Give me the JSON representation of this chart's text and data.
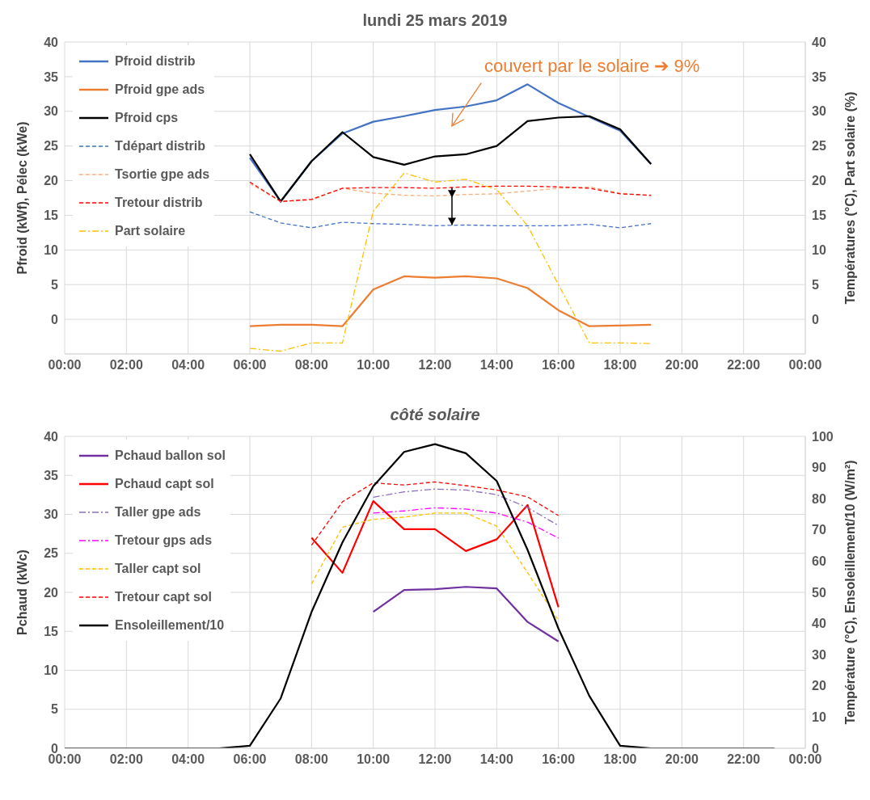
{
  "chart_data": [
    {
      "type": "line",
      "title": "lundi 25 mars 2019",
      "ylabel": "Pfroid (kWf), Pélec (kWe)",
      "y2label": "Températures (°C), Part solaire (%)",
      "annotations": [
        "couvert par le solaire ➔ 9%"
      ],
      "xlim": [
        0,
        24
      ],
      "xticks": [
        {
          "value": 0,
          "label": "00:00"
        },
        {
          "value": 2,
          "label": "02:00"
        },
        {
          "value": 4,
          "label": "04:00"
        },
        {
          "value": 6,
          "label": "06:00"
        },
        {
          "value": 8,
          "label": "08:00"
        },
        {
          "value": 10,
          "label": "10:00"
        },
        {
          "value": 12,
          "label": "12:00"
        },
        {
          "value": 14,
          "label": "14:00"
        },
        {
          "value": 16,
          "label": "16:00"
        },
        {
          "value": 18,
          "label": "18:00"
        },
        {
          "value": 20,
          "label": "20:00"
        },
        {
          "value": 22,
          "label": "22:00"
        },
        {
          "value": 24,
          "label": "00:00"
        }
      ],
      "ylim": [
        -5,
        40
      ],
      "yticks": [
        0,
        5,
        10,
        15,
        20,
        25,
        30,
        35,
        40
      ],
      "y2lim": [
        -5,
        40
      ],
      "y2ticks": [
        0,
        5,
        10,
        15,
        20,
        25,
        30,
        35,
        40
      ],
      "grid": true,
      "legend": "top left",
      "series": [
        {
          "name": "Pfroid distrib",
          "color": "#4472c4",
          "line_style": "solid",
          "x": [
            6,
            7,
            8,
            9,
            10,
            11,
            12,
            13,
            14,
            15,
            16,
            17,
            18,
            19
          ],
          "values": [
            23.3,
            17,
            22.8,
            26.8,
            28.5,
            29.3,
            30.2,
            30.7,
            31.6,
            33.9,
            31.2,
            29.2,
            27.2,
            22.4
          ]
        },
        {
          "name": "Pfroid gpe ads",
          "color": "#ed7d31",
          "line_style": "solid",
          "x": [
            6,
            7,
            8,
            9,
            10,
            11,
            12,
            13,
            14,
            15,
            16,
            17,
            18,
            19
          ],
          "values": [
            -1.0,
            -0.8,
            -0.8,
            -1.0,
            4.3,
            6.2,
            6.0,
            6.2,
            5.9,
            4.5,
            1.3,
            -1.0,
            -0.9,
            -0.8
          ]
        },
        {
          "name": "Pfroid cps",
          "color": "#000000",
          "line_style": "solid",
          "x": [
            6,
            7,
            8,
            9,
            10,
            11,
            12,
            13,
            14,
            15,
            16,
            17,
            18,
            19
          ],
          "values": [
            23.8,
            17,
            22.8,
            27,
            23.4,
            22.3,
            23.5,
            23.8,
            25,
            28.6,
            29.1,
            29.3,
            27.4,
            22.4
          ]
        },
        {
          "name": "Tdépart distrib",
          "color": "#4472c4",
          "line_style": "dashed",
          "axis": "y2",
          "x": [
            6,
            7,
            8,
            9,
            10,
            11,
            12,
            13,
            14,
            15,
            16,
            17,
            18,
            19
          ],
          "values": [
            15.5,
            13.9,
            13.2,
            14.0,
            13.8,
            13.7,
            13.5,
            13.6,
            13.5,
            13.5,
            13.5,
            13.7,
            13.2,
            13.8
          ]
        },
        {
          "name": "Tsortie gpe ads",
          "color": "#f4b183",
          "line_style": "dashed",
          "axis": "y2",
          "x": [
            6,
            7,
            8,
            9,
            10,
            11,
            12,
            13,
            14,
            15,
            16,
            17,
            18,
            19
          ],
          "values": [
            19.6,
            17,
            17.2,
            18.9,
            18.2,
            17.9,
            17.8,
            18.0,
            18.1,
            18.5,
            18.9,
            19.1,
            18.2,
            17.8
          ]
        },
        {
          "name": "Tretour distrib",
          "color": "#ff0000",
          "line_style": "dashed",
          "axis": "y2",
          "x": [
            6,
            7,
            8,
            9,
            10,
            11,
            12,
            13,
            14,
            15,
            16,
            17,
            18,
            19
          ],
          "values": [
            19.8,
            17,
            17.3,
            18.9,
            19.0,
            19.0,
            18.9,
            19.1,
            19.2,
            19.2,
            19.1,
            18.9,
            18.1,
            17.9
          ]
        },
        {
          "name": "Part solaire",
          "color": "#ffc000",
          "line_style": "dashdot",
          "axis": "y2",
          "x": [
            6,
            7,
            8,
            9,
            10,
            11,
            12,
            13,
            14,
            15,
            16,
            17,
            18,
            19
          ],
          "values": [
            -4.2,
            -4.6,
            -3.4,
            -3.4,
            15.6,
            21.1,
            19.8,
            20.2,
            18.7,
            13.5,
            5,
            -3.4,
            -3.4,
            -3.5
          ]
        }
      ]
    },
    {
      "type": "line",
      "title": "côté solaire",
      "ylabel": "Pchaud (kWc)",
      "y2label": "Température (°C), Ensoleillement/10 (W/m²)",
      "xlim": [
        0,
        24
      ],
      "xticks": [
        {
          "value": 0,
          "label": "00:00"
        },
        {
          "value": 2,
          "label": "02:00"
        },
        {
          "value": 4,
          "label": "04:00"
        },
        {
          "value": 6,
          "label": "06:00"
        },
        {
          "value": 8,
          "label": "08:00"
        },
        {
          "value": 10,
          "label": "10:00"
        },
        {
          "value": 12,
          "label": "12:00"
        },
        {
          "value": 14,
          "label": "14:00"
        },
        {
          "value": 16,
          "label": "16:00"
        },
        {
          "value": 18,
          "label": "18:00"
        },
        {
          "value": 20,
          "label": "20:00"
        },
        {
          "value": 22,
          "label": "22:00"
        },
        {
          "value": 24,
          "label": "00:00"
        }
      ],
      "ylim": [
        0,
        40
      ],
      "yticks": [
        0,
        5,
        10,
        15,
        20,
        25,
        30,
        35,
        40
      ],
      "y2lim": [
        0,
        100
      ],
      "y2ticks": [
        0,
        10,
        20,
        30,
        40,
        50,
        60,
        70,
        80,
        90,
        100
      ],
      "grid": true,
      "legend": "top left",
      "series": [
        {
          "name": "Pchaud ballon sol",
          "color": "#7030a0",
          "line_style": "solid",
          "x": [
            10,
            11,
            12,
            13,
            14,
            15,
            16
          ],
          "values": [
            17.5,
            20.3,
            20.4,
            20.7,
            20.5,
            16.2,
            13.7
          ]
        },
        {
          "name": "Pchaud capt sol",
          "color": "#ff0000",
          "line_style": "solid",
          "x": [
            8,
            9,
            10,
            11,
            12,
            13,
            14,
            15,
            16
          ],
          "values": [
            27.0,
            22.5,
            31.7,
            28.1,
            28.1,
            25.3,
            26.8,
            31.2,
            18.1
          ]
        },
        {
          "name": "Taller gpe ads",
          "color": "#8e6cc0",
          "line_style": "dashdot",
          "axis": "y2",
          "x": [
            10,
            11,
            12,
            13,
            14,
            15,
            16
          ],
          "values": [
            80.5,
            82.2,
            83.1,
            82.8,
            81.3,
            77.2,
            71.4
          ]
        },
        {
          "name": "Tretour gps ads",
          "color": "#ff00ff",
          "line_style": "dashdot",
          "axis": "y2",
          "x": [
            10,
            11,
            12,
            13,
            14,
            15,
            16
          ],
          "values": [
            75.4,
            76.1,
            77.1,
            76.7,
            75.4,
            72.5,
            67.4
          ]
        },
        {
          "name": "Taller capt sol",
          "color": "#ffc000",
          "line_style": "dashed",
          "axis": "y2",
          "x": [
            8,
            9,
            10,
            11,
            12,
            13,
            14,
            15,
            16
          ],
          "values": [
            52.7,
            70.9,
            73.4,
            74.1,
            75.4,
            75.4,
            71.2,
            56.3,
            41
          ]
        },
        {
          "name": "Tretour capt sol",
          "color": "#ff0000",
          "line_style": "dashed",
          "axis": "y2",
          "x": [
            8,
            9,
            10,
            11,
            12,
            13,
            14,
            15,
            16
          ],
          "values": [
            65.1,
            79,
            85.1,
            84.4,
            85.4,
            84.2,
            82.8,
            80.6,
            74.6
          ]
        },
        {
          "name": "Ensoleillement/10",
          "color": "#000000",
          "line_style": "solid",
          "axis": "y2",
          "x": [
            0,
            1,
            2,
            3,
            4,
            5,
            6,
            7,
            8,
            9,
            10,
            11,
            12,
            13,
            14,
            15,
            16,
            17,
            18,
            19,
            20,
            21,
            22,
            23
          ],
          "values": [
            0,
            0,
            0,
            0,
            0,
            0,
            0.8,
            16,
            43.7,
            66,
            84,
            95,
            97.5,
            94.6,
            85.7,
            63.6,
            38.4,
            16.8,
            0.8,
            0,
            0,
            0,
            0,
            0
          ]
        }
      ]
    }
  ]
}
